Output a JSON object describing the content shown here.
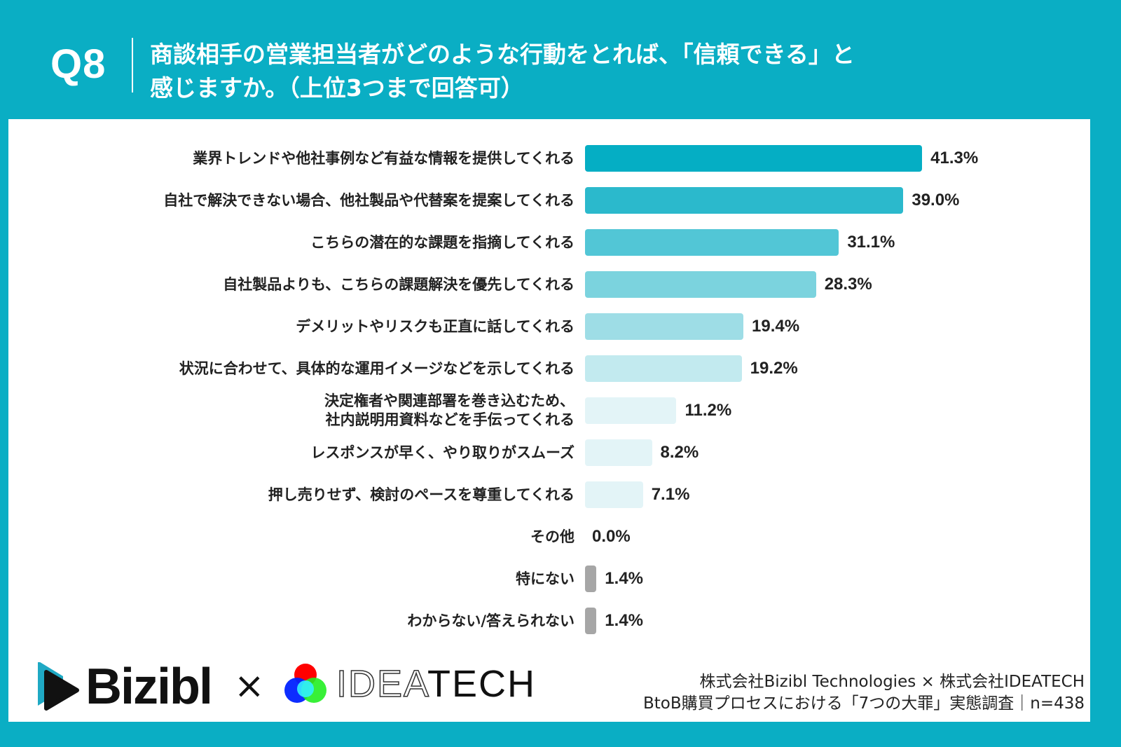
{
  "header": {
    "q_number": "Q8",
    "question": "商談相手の営業担当者がどのような行動をとれば、「信頼できる」と\n感じますか。（上位3つまで回答可）"
  },
  "chart_data": {
    "type": "bar",
    "orientation": "horizontal",
    "categories": [
      "業界トレンドや他社事例など有益な情報を提供してくれる",
      "自社で解決できない場合、他社製品や代替案を提案してくれる",
      "こちらの潜在的な課題を指摘してくれる",
      "自社製品よりも、こちらの課題解決を優先してくれる",
      "デメリットやリスクも正直に話してくれる",
      "状況に合わせて、具体的な運用イメージなどを示してくれる",
      "決定権者や関連部署を巻き込むため、\n社内説明用資料などを手伝ってくれる",
      "レスポンスが早く、やり取りがスムーズ",
      "押し売りせず、検討のペースを尊重してくれる",
      "その他",
      "特にない",
      "わからない/答えられない"
    ],
    "values": [
      41.3,
      39.0,
      31.1,
      28.3,
      19.4,
      19.2,
      11.2,
      8.2,
      7.1,
      0.0,
      1.4,
      1.4
    ],
    "value_labels": [
      "41.3%",
      "39.0%",
      "31.1%",
      "28.3%",
      "19.4%",
      "19.2%",
      "11.2%",
      "8.2%",
      "7.1%",
      "0.0%",
      "1.4%",
      "1.4%"
    ],
    "colors": [
      "#05aec4",
      "#2bb9cc",
      "#52c6d6",
      "#7bd3de",
      "#9edde6",
      "#c2eaef",
      "#e3f4f7",
      "#e3f4f7",
      "#e3f4f7",
      "#e3f4f7",
      "#a6a6a6",
      "#a6a6a6"
    ],
    "unit": "%",
    "grid": false
  },
  "footer": {
    "logo_left": "Bizibl",
    "logo_times": "×",
    "logo_right_outline": "IDEA",
    "logo_right_solid": "TECH",
    "credit_line1": "株式会社Bizibl Technologies × 株式会社IDEATECH",
    "credit_line2": "BtoB購買プロセスにおける「7つの大罪」実態調査｜n=438"
  },
  "colors": {
    "background": "#0aaec4",
    "accent": "#05aec4"
  }
}
